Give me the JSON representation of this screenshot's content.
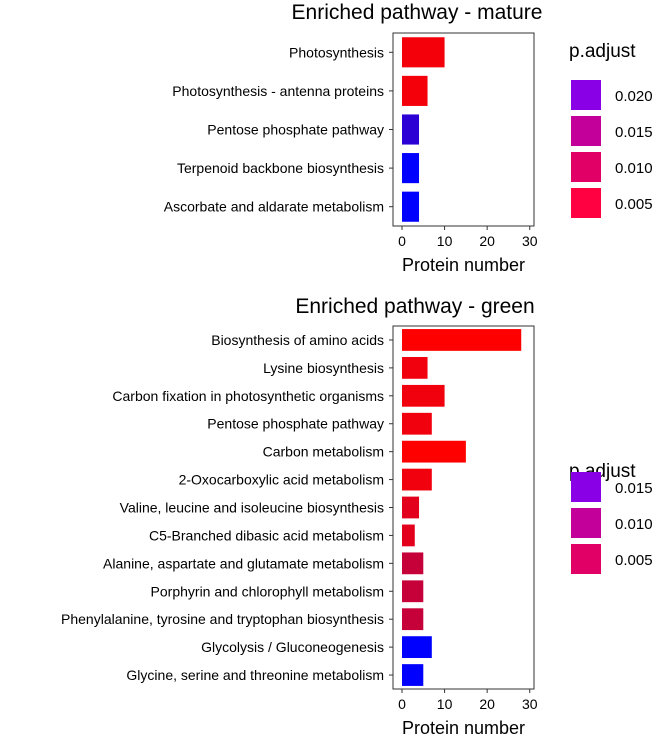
{
  "chart_data": [
    {
      "type": "bar",
      "orientation": "horizontal",
      "title": "Enriched pathway - mature",
      "xlabel": "Protein number",
      "ylabel": "",
      "xlim": [
        0,
        31
      ],
      "xticks": [
        0,
        10,
        20,
        30
      ],
      "categories": [
        "Photosynthesis",
        "Photosynthesis - antenna proteins",
        "Pentose phosphate pathway",
        "Terpenoid backbone biosynthesis",
        "Ascorbate and aldarate metabolism"
      ],
      "values": [
        10,
        6,
        4,
        4,
        4
      ],
      "p_adjust": [
        0.002,
        0.002,
        0.021,
        0.025,
        0.025
      ],
      "grid": false,
      "legend": {
        "title": "p.adjust",
        "position": "right",
        "labels": [
          "0.020",
          "0.015",
          "0.010",
          "0.005"
        ],
        "colors": [
          "#8a00e6",
          "#c4009a",
          "#e00066",
          "#ff0040"
        ]
      },
      "color_scale": {
        "low": "#ff0000",
        "high": "#0000ff",
        "domain": [
          0.001,
          0.025
        ]
      }
    },
    {
      "type": "bar",
      "orientation": "horizontal",
      "title": "Enriched pathway - green",
      "xlabel": "Protein number",
      "ylabel": "",
      "xlim": [
        0,
        31
      ],
      "xticks": [
        0,
        10,
        20,
        30
      ],
      "categories": [
        "Biosynthesis of amino acids",
        "Lysine biosynthesis",
        "Carbon fixation in photosynthetic organisms",
        "Pentose phosphate pathway",
        "Carbon metabolism",
        "2-Oxocarboxylic acid metabolism",
        "Valine, leucine and isoleucine biosynthesis",
        "C5-Branched dibasic acid metabolism",
        "Alanine, aspartate and glutamate metabolism",
        "Porphyrin and chlorophyll metabolism",
        "Phenylalanine, tyrosine and tryptophan biosynthesis",
        "Glycolysis / Gluconeogenesis",
        "Glycine, serine and threonine metabolism"
      ],
      "values": [
        28,
        6,
        10,
        7,
        15,
        7,
        4,
        3,
        5,
        5,
        5,
        7,
        5
      ],
      "p_adjust": [
        0.001,
        0.002,
        0.002,
        0.002,
        0.001,
        0.002,
        0.003,
        0.003,
        0.005,
        0.005,
        0.005,
        0.019,
        0.019
      ],
      "grid": false,
      "legend": {
        "title": "p.adjust",
        "position": "right",
        "labels": [
          "0.015",
          "0.010",
          "0.005"
        ],
        "colors": [
          "#8a00e6",
          "#c4009a",
          "#e00066"
        ]
      },
      "color_scale": {
        "low": "#ff0000",
        "high": "#0000ff",
        "domain": [
          0.001,
          0.019
        ]
      }
    }
  ]
}
